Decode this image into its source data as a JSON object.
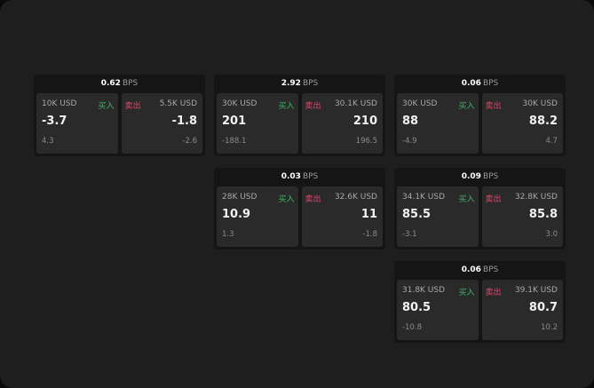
{
  "colors": {
    "buy": "#3fb468",
    "sell": "#e0466b",
    "card": "#2a2a2a",
    "group": "#151515",
    "panel": "#1e1e1e"
  },
  "unit": "BPS",
  "groups": [
    {
      "bps": "0.62",
      "buy": {
        "amount": "10K USD",
        "label": "买入",
        "price": "-3.7",
        "diff": "4.3"
      },
      "sell": {
        "amount": "5.5K USD",
        "label": "卖出",
        "price": "-1.8",
        "diff": "-2.6"
      }
    },
    {
      "bps": "2.92",
      "buy": {
        "amount": "30K USD",
        "label": "买入",
        "price": "201",
        "diff": "-188.1"
      },
      "sell": {
        "amount": "30.1K USD",
        "label": "卖出",
        "price": "210",
        "diff": "196.5"
      }
    },
    {
      "bps": "0.06",
      "buy": {
        "amount": "30K USD",
        "label": "买入",
        "price": "88",
        "diff": "-4.9"
      },
      "sell": {
        "amount": "30K USD",
        "label": "卖出",
        "price": "88.2",
        "diff": "4.7"
      }
    },
    {
      "bps": "0.03",
      "buy": {
        "amount": "28K USD",
        "label": "买入",
        "price": "10.9",
        "diff": "1.3"
      },
      "sell": {
        "amount": "32.6K USD",
        "label": "卖出",
        "price": "11",
        "diff": "-1.8"
      }
    },
    {
      "bps": "0.09",
      "buy": {
        "amount": "34.1K USD",
        "label": "买入",
        "price": "85.5",
        "diff": "-3.1"
      },
      "sell": {
        "amount": "32.8K USD",
        "label": "卖出",
        "price": "85.8",
        "diff": "3.0"
      }
    },
    {
      "bps": "0.06",
      "buy": {
        "amount": "31.8K USD",
        "label": "买入",
        "price": "80.5",
        "diff": "-10.8"
      },
      "sell": {
        "amount": "39.1K USD",
        "label": "卖出",
        "price": "80.7",
        "diff": "10.2"
      }
    }
  ]
}
